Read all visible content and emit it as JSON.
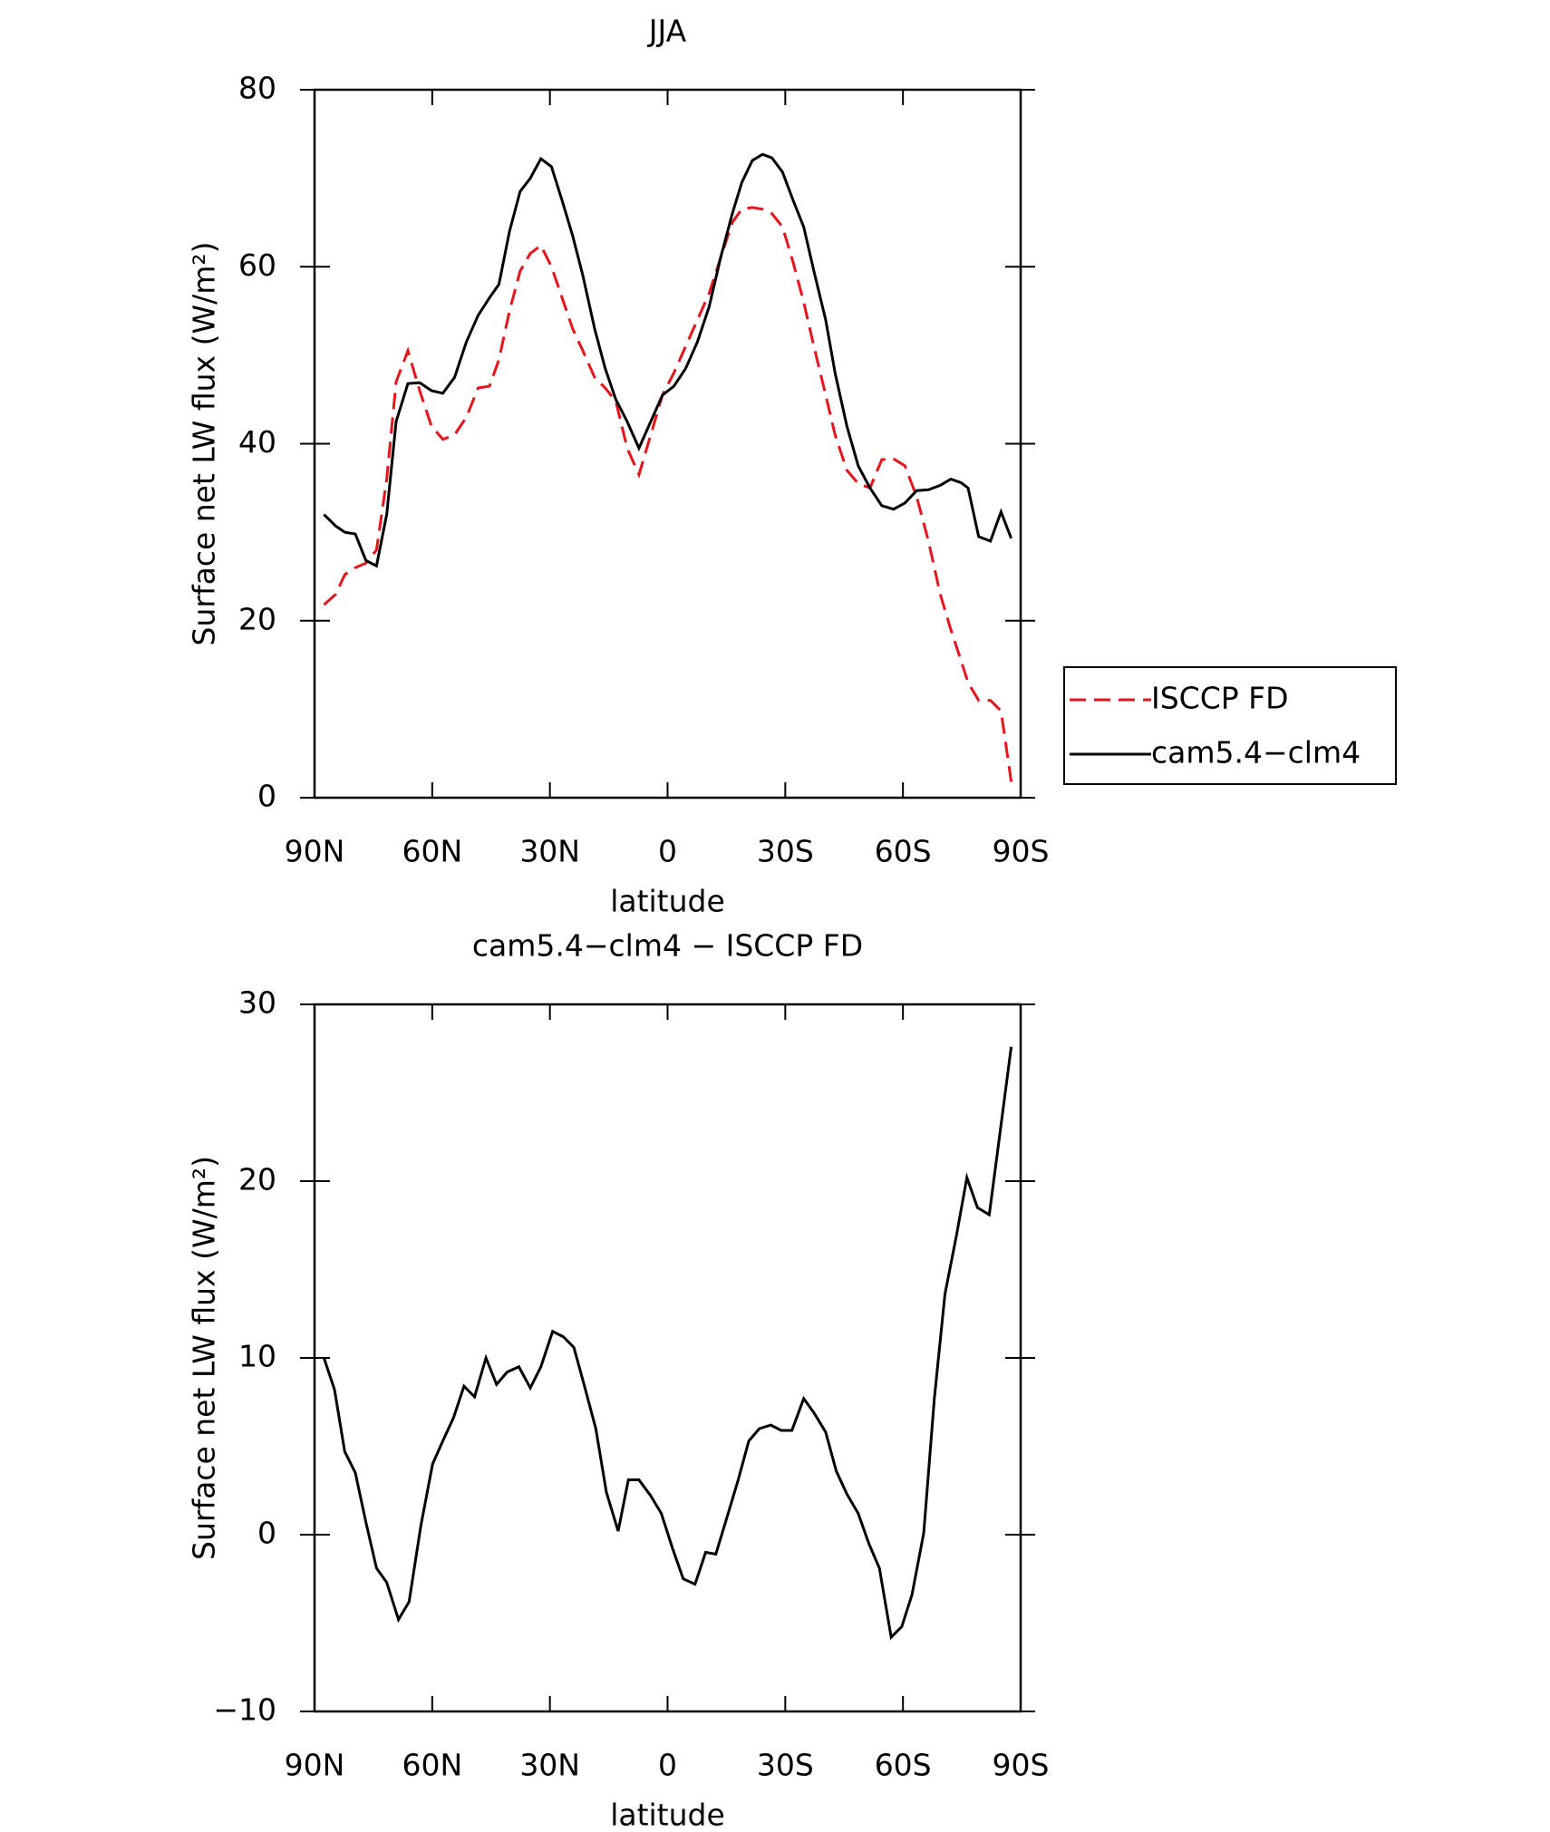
{
  "chart_data": [
    {
      "type": "line",
      "title": "JJA",
      "xlabel": "latitude",
      "ylabel": "Surface net LW flux (W/m²)",
      "x": [
        87.6,
        84.6,
        82.3,
        79.6,
        76.9,
        74.2,
        71.6,
        69.2,
        66.2,
        63.2,
        60.2,
        57.3,
        54.3,
        51.3,
        48.3,
        45.4,
        43.0,
        40.3,
        37.6,
        35.0,
        32.3,
        29.6,
        26.9,
        24.2,
        21.6,
        18.6,
        15.9,
        13.2,
        10.3,
        7.3,
        4.3,
        1.3,
        -1.6,
        -4.6,
        -7.6,
        -10.6,
        -13.5,
        -16.5,
        -18.9,
        -21.6,
        -24.2,
        -26.6,
        -29.3,
        -32.0,
        -34.7,
        -37.3,
        -40.3,
        -42.7,
        -45.7,
        -48.6,
        -51.6,
        -54.6,
        -57.6,
        -60.5,
        -63.5,
        -66.5,
        -69.5,
        -72.2,
        -74.8,
        -76.6,
        -79.3,
        -82.3,
        -85.0,
        -87.6
      ],
      "series": [
        {
          "name": "ISCCP FD",
          "color": "#e8141c",
          "dash": true,
          "values": [
            21.8,
            23,
            25.2,
            26,
            26.5,
            28,
            36,
            47,
            50.5,
            46,
            42,
            40.5,
            41,
            43,
            46.3,
            46.5,
            49.5,
            55,
            59.5,
            61.5,
            62.4,
            60,
            56.5,
            53,
            50.5,
            47.5,
            46.3,
            44.8,
            39.5,
            36.5,
            41,
            45.5,
            48,
            51,
            54,
            57,
            61,
            65,
            66.5,
            66.7,
            66.5,
            66,
            64.5,
            60.5,
            56,
            51,
            45.5,
            41,
            37,
            35.5,
            35,
            38.2,
            38.3,
            37.5,
            34,
            29,
            23,
            19,
            15.5,
            13,
            11,
            11,
            9.8,
            1.8
          ]
        },
        {
          "name": "cam5.4−clm4",
          "color": "#000000",
          "dash": false,
          "values": [
            32,
            30.7,
            30,
            29.8,
            26.8,
            26.2,
            32,
            42.5,
            46.8,
            46.9,
            46,
            45.7,
            47.5,
            51.5,
            54.5,
            56.5,
            58,
            64,
            68.5,
            70,
            72.2,
            71.3,
            67.5,
            63.5,
            59,
            53,
            48.5,
            45,
            42.5,
            39.5,
            42.5,
            45.5,
            46.5,
            48.5,
            51.5,
            55.5,
            61,
            66,
            69.5,
            72,
            72.7,
            72.3,
            70.7,
            67.5,
            64.5,
            59.5,
            54,
            48,
            42,
            37.5,
            35,
            33,
            32.6,
            33.3,
            34.7,
            34.8,
            35.3,
            36,
            35.6,
            35,
            29.5,
            29,
            32.3,
            29.3
          ]
        }
      ],
      "xlim": [
        90,
        -90
      ],
      "xticks": [
        {
          "value": 90,
          "label": "90N"
        },
        {
          "value": 60,
          "label": "60N"
        },
        {
          "value": 30,
          "label": "30N"
        },
        0,
        {
          "value": -30,
          "label": "30S"
        },
        {
          "value": -60,
          "label": "60S"
        },
        {
          "value": -90,
          "label": "90S"
        }
      ],
      "ylim": [
        0,
        80
      ],
      "yticks": [
        0,
        20,
        40,
        60,
        80
      ],
      "legend": "right"
    },
    {
      "type": "line",
      "title": "cam5.4−clm4 − ISCCP FD",
      "xlabel": "latitude",
      "ylabel": "Surface net LW flux (W/m²)",
      "x": [
        87.6,
        84.9,
        82.3,
        79.6,
        76.9,
        74.2,
        71.6,
        68.6,
        65.9,
        62.9,
        59.9,
        57.3,
        54.6,
        51.9,
        49.2,
        46.3,
        43.6,
        40.9,
        37.9,
        35.0,
        32.3,
        29.3,
        26.6,
        23.9,
        21.3,
        18.3,
        15.6,
        12.6,
        10.0,
        7.3,
        4.3,
        1.6,
        -1.3,
        -4.0,
        -7.0,
        -9.7,
        -12.3,
        -15.3,
        -18.0,
        -20.7,
        -23.4,
        -26.3,
        -29.0,
        -31.7,
        -34.7,
        -37.3,
        -40.3,
        -43.0,
        -45.7,
        -48.6,
        -51.3,
        -54.0,
        -57.0,
        -59.7,
        -62.3,
        -65.3,
        -68.0,
        -70.7,
        -73.7,
        -76.3,
        -79.0,
        -82.0,
        -84.6,
        -87.6
      ],
      "series": [
        {
          "name": "cam5.4−clm4 − ISCCP FD",
          "color": "#000000",
          "dash": false,
          "values": [
            10,
            8.2,
            4.7,
            3.5,
            0.7,
            -1.9,
            -2.7,
            -4.8,
            -3.8,
            0.5,
            4,
            5.3,
            6.6,
            8.4,
            7.8,
            10,
            8.5,
            9.2,
            9.5,
            8.3,
            9.5,
            11.5,
            11.2,
            10.6,
            8.5,
            6,
            2.4,
            0.2,
            3.1,
            3.1,
            2.2,
            1.2,
            -0.8,
            -2.5,
            -2.8,
            -1,
            -1.1,
            1.1,
            3.1,
            5.3,
            6,
            6.2,
            5.9,
            5.9,
            7.7,
            6.9,
            5.8,
            3.6,
            2.3,
            1.2,
            -0.5,
            -1.9,
            -5.8,
            -5.2,
            -3.4,
            0.1,
            7.7,
            13.6,
            17,
            20.2,
            18.5,
            18.1,
            22.5,
            27.6
          ]
        }
      ],
      "xlim": [
        90,
        -90
      ],
      "xticks": [
        {
          "value": 90,
          "label": "90N"
        },
        {
          "value": 60,
          "label": "60N"
        },
        {
          "value": 30,
          "label": "30N"
        },
        0,
        {
          "value": -30,
          "label": "30S"
        },
        {
          "value": -60,
          "label": "60S"
        },
        {
          "value": -90,
          "label": "90S"
        }
      ],
      "ylim": [
        -10,
        30
      ],
      "yticks": [
        {
          "value": -10,
          "label": "−10"
        },
        0,
        10,
        20,
        30
      ]
    }
  ]
}
